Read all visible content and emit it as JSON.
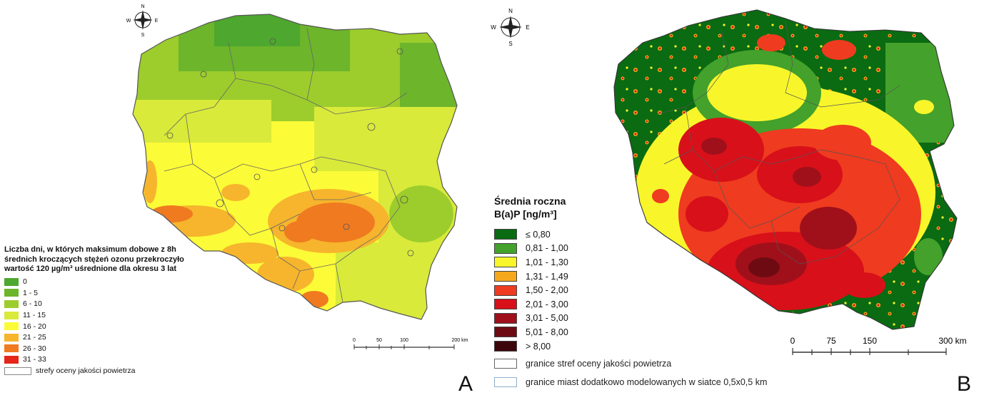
{
  "panel_a": {
    "letter": "A",
    "compass": {
      "n": "N",
      "s": "S",
      "e": "E",
      "w": "W"
    },
    "legend_title": "Liczba dni, w których maksimum dobowe z 8h średnich kroczących stężeń ozonu przekroczyło wartość 120 µg/m³ uśrednione dla okresu 3 lat",
    "legend_items": [
      {
        "label": "0",
        "color": "#4ea72e"
      },
      {
        "label": "1 - 5",
        "color": "#6db52b"
      },
      {
        "label": "6 - 10",
        "color": "#9ccd2c"
      },
      {
        "label": "11 - 15",
        "color": "#d9ea3a"
      },
      {
        "label": "16 - 20",
        "color": "#fcfb37"
      },
      {
        "label": "21 - 25",
        "color": "#f6b52c"
      },
      {
        "label": "26 - 30",
        "color": "#f07a20"
      },
      {
        "label": "31 - 33",
        "color": "#e5261a"
      }
    ],
    "boundary_label": "strefy oceny jakości powietrza",
    "scale": {
      "ticks": [
        "0",
        "50",
        "100",
        "200 km"
      ]
    }
  },
  "panel_b": {
    "letter": "B",
    "compass": {
      "n": "N",
      "s": "S",
      "e": "E",
      "w": "W"
    },
    "legend_title_line1": "Średnia roczna",
    "legend_title_line2": "B(a)P [ng/m³]",
    "legend_items": [
      {
        "label": "≤ 0,80",
        "color": "#0a6b12"
      },
      {
        "label": "0,81 - 1,00",
        "color": "#44a12b"
      },
      {
        "label": "1,01 - 1,30",
        "color": "#f8f62a"
      },
      {
        "label": "1,31 - 1,49",
        "color": "#f6a81c"
      },
      {
        "label": "1,50 - 2,00",
        "color": "#ef3b1f"
      },
      {
        "label": "2,01 - 3,00",
        "color": "#d8101a"
      },
      {
        "label": "3,01 - 5,00",
        "color": "#a0101a"
      },
      {
        "label": "5,01 - 8,00",
        "color": "#6e0b12"
      },
      {
        "label": "> 8,00",
        "color": "#3d060b"
      }
    ],
    "boundary_items": [
      {
        "label": "granice stref oceny jakości powietrza",
        "color": "#666666"
      },
      {
        "label": "granice miast dodatkowo modelowanych w siatce 0,5x0,5 km",
        "color": "#8fb0cc"
      }
    ],
    "scale": {
      "ticks": [
        "0",
        "75",
        "150",
        "300 km"
      ]
    }
  }
}
